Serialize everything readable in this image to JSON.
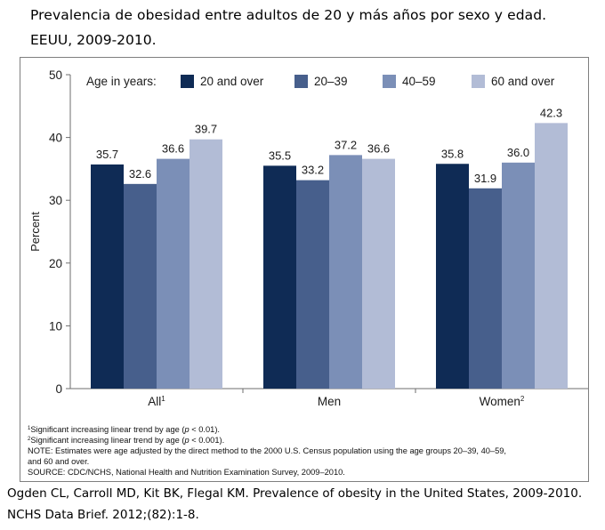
{
  "header": {
    "title_line1": "Prevalencia de obesidad entre adultos de 20 y más años por sexo y edad.",
    "title_line2": "EEUU, 2009-2010."
  },
  "chart_data": {
    "type": "bar",
    "categories": [
      "All",
      "Men",
      "Women"
    ],
    "category_superscripts": [
      "1",
      "",
      "2"
    ],
    "legend_title": "Age in years:",
    "series": [
      {
        "name": "20 and over",
        "values": [
          35.7,
          35.5,
          35.8
        ],
        "color": "#0f2b55"
      },
      {
        "name": "20–39",
        "values": [
          32.6,
          33.2,
          31.9
        ],
        "color": "#475f8c"
      },
      {
        "name": "40–59",
        "values": [
          36.6,
          37.2,
          36.0
        ],
        "color": "#7b8fb7"
      },
      {
        "name": "60 and over",
        "values": [
          39.7,
          36.6,
          42.3
        ],
        "color": "#b2bcd6"
      }
    ],
    "data_labels": [
      [
        "35.7",
        "35.5",
        "35.8"
      ],
      [
        "32.6",
        "33.2",
        "31.9"
      ],
      [
        "36.6",
        "37.2",
        "36.0"
      ],
      [
        "39.7",
        "36.6",
        "42.3"
      ]
    ],
    "ylabel": "Percent",
    "xlabel": "",
    "ylim": [
      0,
      50
    ],
    "yticks": [
      0,
      10,
      20,
      30,
      40,
      50
    ],
    "ytick_labels": [
      "0",
      "10",
      "20",
      "30",
      "40",
      "50"
    ],
    "legend_position": "top",
    "grid": false
  },
  "footnotes": {
    "note1_mark": "1",
    "note1_pre": "Significant increasing linear trend by age (",
    "note1_p": "p",
    "note1_post": " < 0.01).",
    "note2_mark": "2",
    "note2_pre": "Significant increasing linear trend by age (",
    "note2_p": "p",
    "note2_post": " < 0.001).",
    "note_line1": "NOTE: Estimates were age adjusted by the direct method to the 2000 U.S. Census population using the age groups 20–39, 40–59,",
    "note_line2": "and 60 and over.",
    "source": "SOURCE: CDC/NCHS, National Health and Nutrition Examination Survey, 2009–2010."
  },
  "citation": {
    "line1": "Ogden CL, Carroll MD, Kit BK, Flegal KM. Prevalence of obesity in the United States, 2009-2010.",
    "line2": "NCHS Data Brief. 2012;(82):1-8."
  }
}
